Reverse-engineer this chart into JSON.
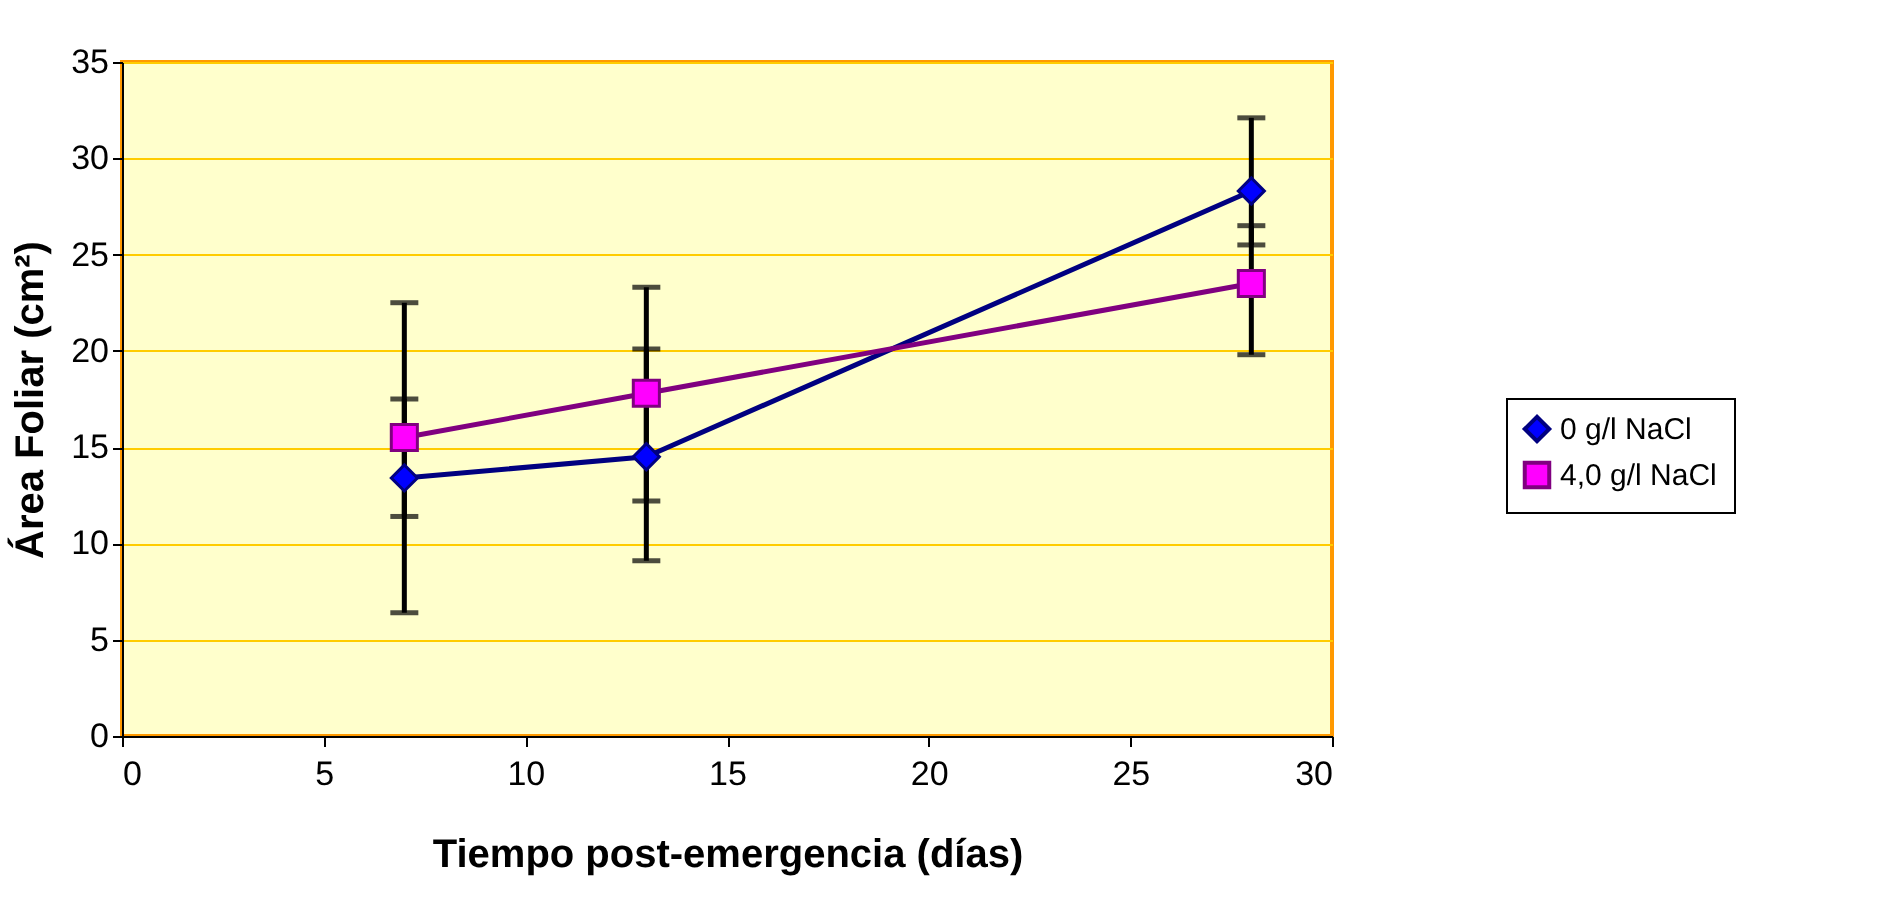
{
  "chart_data": {
    "type": "line",
    "xlabel": "Tiempo post-emergencia (días)",
    "ylabel": "Área Foliar (cm²)",
    "xlim": [
      0,
      30
    ],
    "xticks": [
      0,
      5,
      10,
      15,
      20,
      25,
      30
    ],
    "ylim": [
      0,
      35
    ],
    "yticks": [
      0,
      5,
      10,
      15,
      20,
      25,
      30,
      35
    ],
    "grid": "y",
    "legend": "right",
    "marker": "circle",
    "line_style": "solid",
    "series": [
      {
        "name": "0 g/l NaCl",
        "color": "#0000ff",
        "marker": "diamond",
        "x": [
          7,
          13,
          28
        ],
        "values": [
          13.4,
          14.5,
          28.3
        ],
        "errors": [
          [
            6.4,
            17.5
          ],
          [
            9.1,
            20.1
          ],
          [
            25.5,
            32.1
          ]
        ]
      },
      {
        "name": "4,0 g/l NaCl",
        "color": "#ff00ff",
        "marker": "square",
        "x": [
          7,
          13,
          28
        ],
        "values": [
          15.5,
          17.8,
          23.5
        ],
        "errors": [
          [
            11.4,
            22.5
          ],
          [
            12.2,
            23.3
          ],
          [
            19.8,
            26.5
          ]
        ]
      }
    ]
  }
}
